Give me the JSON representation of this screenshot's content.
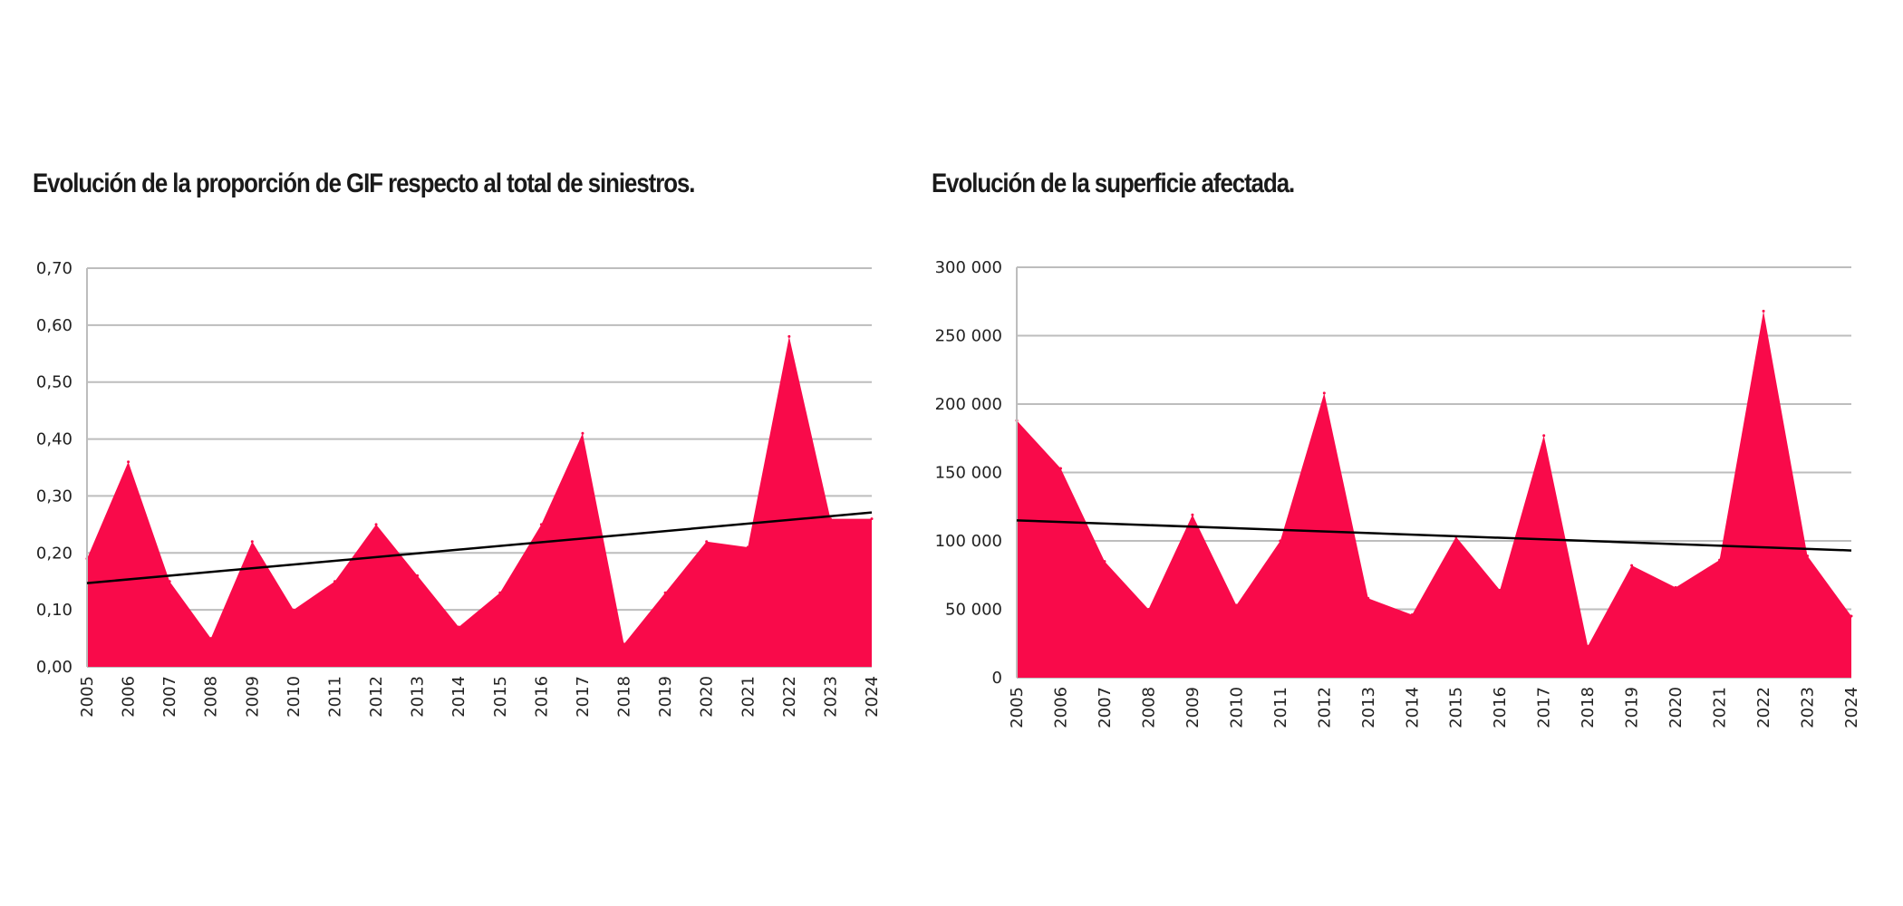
{
  "chart_data": [
    {
      "type": "area",
      "title": "Evolución de la proporción de GIF respecto al total de siniestros.",
      "x": [
        "2005",
        "2006",
        "2007",
        "2008",
        "2009",
        "2010",
        "2011",
        "2012",
        "2013",
        "2014",
        "2015",
        "2016",
        "2017",
        "2018",
        "2019",
        "2020",
        "2021",
        "2022",
        "2023",
        "2024"
      ],
      "values": [
        0.19,
        0.36,
        0.15,
        0.05,
        0.22,
        0.1,
        0.15,
        0.25,
        0.16,
        0.07,
        0.13,
        0.25,
        0.41,
        0.04,
        0.13,
        0.22,
        0.21,
        0.58,
        0.26,
        0.26
      ],
      "trendline": [
        0.147,
        0.271
      ],
      "ylim": [
        0,
        0.7
      ],
      "yticks": [
        "0,00",
        "0,10",
        "0,20",
        "0,30",
        "0,40",
        "0,50",
        "0,60",
        "0,70"
      ],
      "grid": true,
      "fill_color": "#F90A4A",
      "trend_color": "#000000"
    },
    {
      "type": "area",
      "title": "Evolución de la superficie afectada.",
      "x": [
        "2005",
        "2006",
        "2007",
        "2008",
        "2009",
        "2010",
        "2011",
        "2012",
        "2013",
        "2014",
        "2015",
        "2016",
        "2017",
        "2018",
        "2019",
        "2020",
        "2021",
        "2022",
        "2023",
        "2024"
      ],
      "values": [
        188000,
        153000,
        85000,
        50000,
        119000,
        53000,
        100000,
        208000,
        58000,
        46000,
        103000,
        64000,
        177000,
        23000,
        82000,
        66000,
        86000,
        268000,
        89000,
        45000
      ],
      "trendline": [
        115000,
        93000
      ],
      "ylim": [
        0,
        300000
      ],
      "yticks": [
        "0",
        "50 000",
        "100 000",
        "150 000",
        "200 000",
        "250 000",
        "300 000"
      ],
      "grid": true,
      "fill_color": "#F90A4A",
      "trend_color": "#000000"
    }
  ]
}
